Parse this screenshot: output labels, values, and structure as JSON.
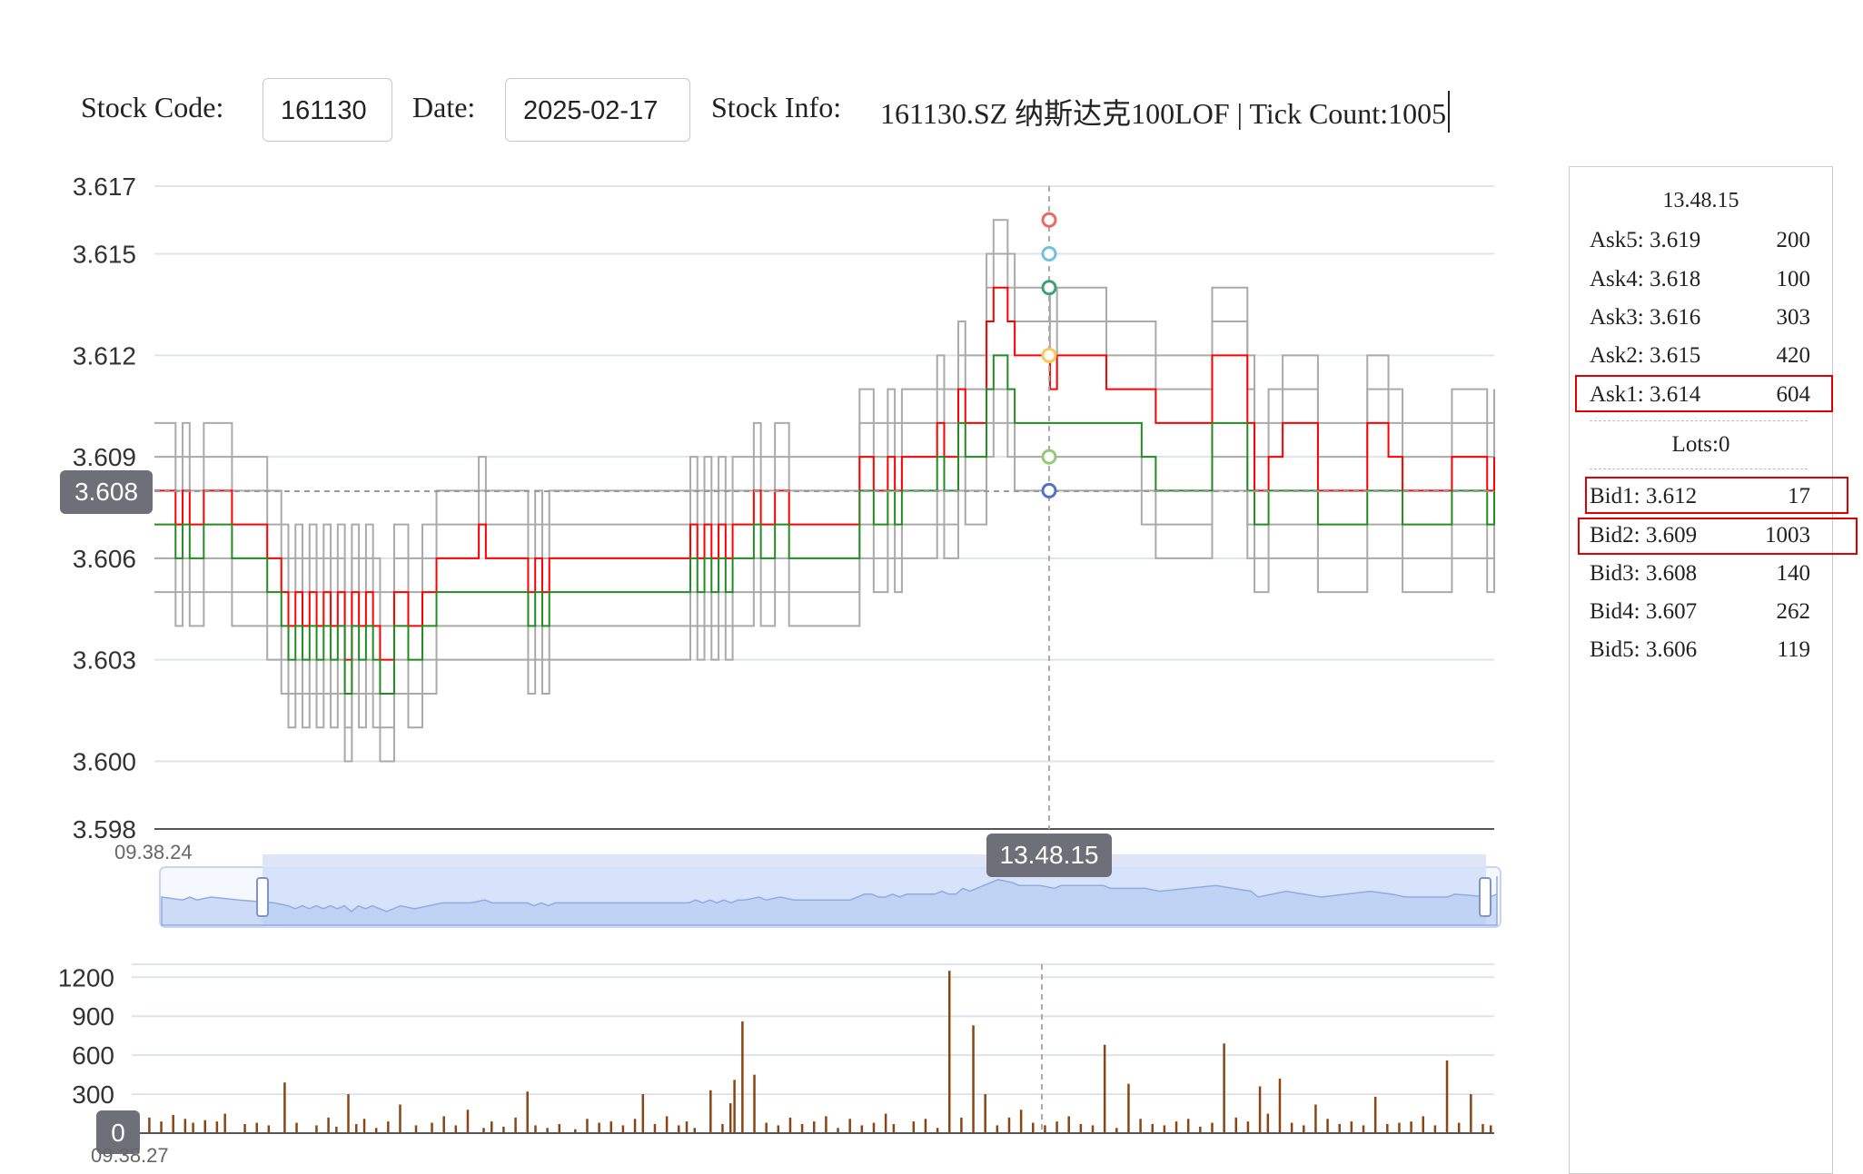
{
  "header": {
    "stock_code_label": "Stock Code:",
    "stock_code_value": "161130",
    "date_label": "Date:",
    "date_value": "2025-02-17",
    "info_label": "Stock Info:",
    "info_value": "161130.SZ 纳斯达克100LOF | Tick Count:1005"
  },
  "order_book": {
    "time": "13.48.15",
    "asks": [
      {
        "label": "Ask5: 3.619",
        "volume": "200"
      },
      {
        "label": "Ask4: 3.618",
        "volume": "100"
      },
      {
        "label": "Ask3: 3.616",
        "volume": "303"
      },
      {
        "label": "Ask2: 3.615",
        "volume": "420"
      },
      {
        "label": "Ask1: 3.614",
        "volume": "604"
      }
    ],
    "lots": "Lots:0",
    "bids": [
      {
        "label": "Bid1: 3.612",
        "volume": "17"
      },
      {
        "label": "Bid2: 3.609",
        "volume": "1003"
      },
      {
        "label": "Bid3: 3.608",
        "volume": "140"
      },
      {
        "label": "Bid4: 3.607",
        "volume": "262"
      },
      {
        "label": "Bid5: 3.606",
        "volume": "119"
      }
    ],
    "highlighted_rows": [
      "Ask1",
      "Bid1",
      "Bid2"
    ],
    "highlight_color": "#e00000"
  },
  "chart_data": [
    {
      "type": "line",
      "title": "",
      "ylim": [
        3.598,
        3.617
      ],
      "y_ticks": [
        "3.617",
        "3.615",
        "3.612",
        "3.609",
        "3.606",
        "3.603",
        "3.600",
        "3.598"
      ],
      "x_start_label": "09.38.24",
      "crosshair_x_label": "13.48.15",
      "crosshair_y_label": "3.608",
      "tooltip_values_at_crosshair": [
        3.616,
        3.615,
        3.614,
        3.612,
        3.609,
        3.608
      ],
      "tooltip_marker_colors": [
        "#ee6666",
        "#73c0de",
        "#3ba272",
        "#fac858",
        "#91cc75",
        "#5470c6"
      ],
      "series": [
        {
          "role": "ask-level",
          "color": "#ff0000",
          "x": [
            0,
            3,
            4,
            5,
            7,
            11,
            16,
            18,
            19,
            20,
            21,
            22,
            23,
            24,
            25,
            26,
            27,
            28,
            29,
            30,
            31,
            32,
            34,
            36,
            38,
            40,
            44,
            46,
            47,
            52,
            53,
            54,
            55,
            56,
            57,
            62,
            64,
            66,
            67,
            68,
            69,
            70,
            75,
            76,
            77,
            78,
            79,
            80,
            81,
            82,
            83,
            85,
            86,
            88,
            90,
            95,
            98,
            100,
            101,
            102,
            103,
            104,
            105,
            106,
            108,
            110,
            111,
            112,
            113,
            114,
            115,
            118,
            119,
            121,
            122,
            123,
            124,
            125,
            127,
            128,
            129,
            130,
            134,
            135,
            140,
            142,
            150,
            155,
            156,
            158,
            160,
            165,
            172,
            175,
            177,
            181,
            183,
            184,
            189,
            190
          ],
          "y": [
            3.608,
            3.607,
            3.608,
            3.607,
            3.608,
            3.607,
            3.606,
            3.605,
            3.604,
            3.605,
            3.604,
            3.605,
            3.604,
            3.605,
            3.604,
            3.605,
            3.603,
            3.605,
            3.604,
            3.605,
            3.604,
            3.603,
            3.605,
            3.604,
            3.605,
            3.606,
            3.606,
            3.607,
            3.606,
            3.606,
            3.605,
            3.606,
            3.605,
            3.606,
            3.606,
            3.606,
            3.606,
            3.606,
            3.606,
            3.606,
            3.606,
            3.606,
            3.606,
            3.607,
            3.606,
            3.607,
            3.606,
            3.607,
            3.606,
            3.607,
            3.607,
            3.608,
            3.607,
            3.608,
            3.607,
            3.607,
            3.607,
            3.609,
            3.609,
            3.608,
            3.608,
            3.609,
            3.608,
            3.609,
            3.609,
            3.609,
            3.61,
            3.609,
            3.609,
            3.611,
            3.61,
            3.613,
            3.614,
            3.613,
            3.612,
            3.612,
            3.612,
            3.612,
            3.611,
            3.612,
            3.612,
            3.612,
            3.612,
            3.611,
            3.611,
            3.61,
            3.612,
            3.61,
            3.608,
            3.609,
            3.61,
            3.608,
            3.61,
            3.609,
            3.608,
            3.608,
            3.608,
            3.609,
            3.608,
            3.609
          ]
        },
        {
          "role": "bid-level",
          "color": "#228b22",
          "x": [
            0,
            3,
            4,
            5,
            7,
            11,
            16,
            18,
            19,
            20,
            21,
            22,
            23,
            24,
            25,
            26,
            27,
            28,
            29,
            30,
            31,
            32,
            34,
            36,
            38,
            40,
            44,
            46,
            47,
            52,
            53,
            54,
            55,
            56,
            57,
            62,
            64,
            66,
            67,
            68,
            69,
            70,
            75,
            76,
            77,
            78,
            79,
            80,
            81,
            82,
            83,
            85,
            86,
            88,
            90,
            95,
            98,
            100,
            101,
            102,
            103,
            104,
            105,
            106,
            108,
            110,
            111,
            112,
            113,
            114,
            115,
            118,
            119,
            121,
            122,
            123,
            124,
            125,
            127,
            128,
            129,
            130,
            134,
            135,
            140,
            142,
            150,
            155,
            156,
            158,
            160,
            165,
            172,
            175,
            177,
            181,
            183,
            184,
            189,
            190
          ],
          "y": [
            3.607,
            3.606,
            3.607,
            3.606,
            3.607,
            3.606,
            3.605,
            3.604,
            3.603,
            3.604,
            3.603,
            3.604,
            3.603,
            3.604,
            3.603,
            3.604,
            3.602,
            3.604,
            3.603,
            3.604,
            3.603,
            3.602,
            3.604,
            3.603,
            3.604,
            3.605,
            3.605,
            3.605,
            3.605,
            3.605,
            3.604,
            3.605,
            3.604,
            3.605,
            3.605,
            3.605,
            3.605,
            3.605,
            3.605,
            3.605,
            3.605,
            3.605,
            3.605,
            3.606,
            3.605,
            3.606,
            3.605,
            3.606,
            3.605,
            3.606,
            3.606,
            3.607,
            3.606,
            3.607,
            3.606,
            3.606,
            3.606,
            3.608,
            3.608,
            3.607,
            3.607,
            3.608,
            3.607,
            3.608,
            3.608,
            3.608,
            3.609,
            3.608,
            3.608,
            3.61,
            3.609,
            3.611,
            3.612,
            3.611,
            3.61,
            3.61,
            3.61,
            3.61,
            3.61,
            3.61,
            3.61,
            3.61,
            3.61,
            3.61,
            3.609,
            3.608,
            3.61,
            3.608,
            3.607,
            3.608,
            3.608,
            3.607,
            3.608,
            3.608,
            3.607,
            3.607,
            3.607,
            3.608,
            3.607,
            3.608
          ]
        }
      ],
      "grey_levels_color": "#aaaaaa"
    },
    {
      "type": "area",
      "role": "zoom-navigator",
      "x_start_label": "09.38.24",
      "selection_start_fraction": 0.077,
      "selection_end_fraction": 1.0
    },
    {
      "type": "bar",
      "ylim": [
        0,
        1300
      ],
      "y_ticks": [
        "1200",
        "900",
        "600",
        "300",
        "0"
      ],
      "x_start_label": "09.38.27",
      "crosshair_y_label": "0",
      "color": "#8b4513",
      "x": [
        0,
        3,
        6,
        9,
        12,
        14,
        17,
        20,
        22,
        27,
        30,
        33,
        37,
        40,
        45,
        48,
        50,
        53,
        55,
        57,
        60,
        63,
        66,
        70,
        74,
        77,
        80,
        83,
        87,
        89,
        92,
        95,
        98,
        100,
        103,
        106,
        110,
        113,
        116,
        119,
        122,
        125,
        127,
        130,
        133,
        136,
        138,
        140,
        144,
        147,
        149,
        150,
        152,
        155,
        158,
        161,
        164,
        167,
        170,
        173,
        176,
        179,
        182,
        185,
        188,
        190,
        195,
        198,
        201,
        204,
        207,
        210,
        213,
        216,
        219,
        222,
        225,
        228,
        231,
        234,
        237,
        240,
        243,
        246,
        249,
        252,
        255,
        258,
        261,
        264,
        267,
        270,
        273,
        276,
        279,
        282,
        284,
        287,
        290,
        293,
        296,
        299,
        302,
        305,
        308,
        311,
        314,
        317,
        320,
        323,
        326,
        329,
        332,
        335,
        338,
        340
      ],
      "values": [
        60,
        120,
        90,
        140,
        110,
        80,
        100,
        90,
        150,
        70,
        80,
        60,
        390,
        80,
        60,
        120,
        50,
        300,
        70,
        110,
        40,
        90,
        220,
        60,
        80,
        130,
        60,
        180,
        40,
        90,
        50,
        120,
        320,
        60,
        40,
        70,
        30,
        110,
        80,
        90,
        60,
        110,
        300,
        70,
        130,
        60,
        90,
        40,
        330,
        70,
        230,
        410,
        860,
        450,
        80,
        60,
        120,
        70,
        90,
        130,
        40,
        110,
        60,
        80,
        150,
        70,
        90,
        110,
        40,
        1250,
        120,
        830,
        300,
        60,
        120,
        180,
        80,
        60,
        90,
        130,
        70,
        60,
        680,
        40,
        380,
        110,
        70,
        60,
        90,
        110,
        50,
        80,
        690,
        120,
        90,
        360,
        150,
        420,
        80,
        60,
        220,
        110,
        70,
        90,
        60,
        280,
        70,
        80,
        90,
        130,
        60,
        560,
        80,
        300,
        70,
        60
      ]
    }
  ]
}
